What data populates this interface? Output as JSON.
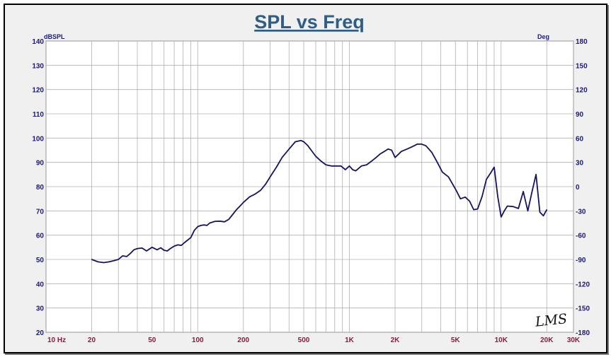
{
  "chart_data": {
    "type": "line",
    "title": "SPL vs Freq",
    "y_left_unit": "dBSPL",
    "y_right_unit": "Deg",
    "x_scale": "log",
    "xlim": [
      10,
      30000
    ],
    "ylim": [
      20,
      140
    ],
    "y_right_lim": [
      -180,
      180
    ],
    "grid": true,
    "x_tick_values": [
      10,
      20,
      50,
      100,
      200,
      500,
      1000,
      2000,
      5000,
      10000,
      20000,
      30000
    ],
    "x_tick_labels": [
      "10  Hz",
      "20",
      "50",
      "100",
      "200",
      "500",
      "1K",
      "2K",
      "5K",
      "10K",
      "20K",
      "30K"
    ],
    "y_left_ticks": [
      20,
      30,
      40,
      50,
      60,
      70,
      80,
      90,
      100,
      110,
      120,
      130,
      140
    ],
    "y_right_ticks": [
      -180,
      -150,
      -120,
      -90,
      -60,
      -30,
      0,
      30,
      60,
      90,
      120,
      150,
      180
    ],
    "line_color": "#15155f",
    "series": [
      {
        "x": [
          20,
          22,
          24,
          26,
          28,
          30,
          32,
          34,
          36,
          38,
          40,
          43,
          46,
          50,
          54,
          57,
          60,
          63,
          66,
          70,
          74,
          78,
          82,
          86,
          90,
          95,
          100,
          105,
          110,
          115,
          120,
          130,
          140,
          150,
          160,
          170,
          180,
          190,
          200,
          220,
          240,
          260,
          280,
          300,
          330,
          360,
          400,
          440,
          480,
          500,
          530,
          560,
          600,
          650,
          700,
          760,
          820,
          880,
          940,
          1000,
          1050,
          1100,
          1200,
          1300,
          1400,
          1500,
          1600,
          1700,
          1800,
          1900,
          2000,
          2200,
          2400,
          2600,
          2800,
          3000,
          3200,
          3500,
          3800,
          4100,
          4500,
          5000,
          5400,
          5800,
          6200,
          6600,
          7000,
          7500,
          8000,
          8500,
          9000,
          9500,
          10000,
          10500,
          11000,
          12000,
          13000,
          14000,
          15000,
          16000,
          17000,
          18000,
          19000,
          20000
        ],
        "y": [
          50,
          49,
          48.7,
          49,
          49.5,
          50,
          51.5,
          51.2,
          52.5,
          54,
          54.5,
          54.7,
          53.5,
          55,
          54,
          54.8,
          53.8,
          53.5,
          54.5,
          55.5,
          56,
          55.8,
          57,
          58,
          59,
          62,
          63.5,
          64,
          64.2,
          64,
          65,
          65.7,
          65.8,
          65.5,
          66.5,
          68.5,
          70.5,
          72,
          73.5,
          75.8,
          77,
          78.5,
          81,
          84,
          88,
          92,
          95.5,
          98.5,
          99,
          98.5,
          97,
          95,
          92.5,
          90.5,
          89,
          88.5,
          88.5,
          88.5,
          87,
          88.5,
          87,
          86.5,
          88.5,
          89,
          90.5,
          92,
          93.5,
          94.5,
          95.5,
          95,
          92,
          94.5,
          95.5,
          96.5,
          97.5,
          97.5,
          96.8,
          94,
          90,
          86,
          84,
          79,
          75,
          75.7,
          74,
          70.5,
          70.8,
          76,
          83,
          85.5,
          88,
          76,
          67.5,
          70,
          72,
          71.8,
          71,
          78,
          70,
          78,
          85,
          69.5,
          68,
          70.5
        ]
      }
    ],
    "signature": "LMS"
  }
}
